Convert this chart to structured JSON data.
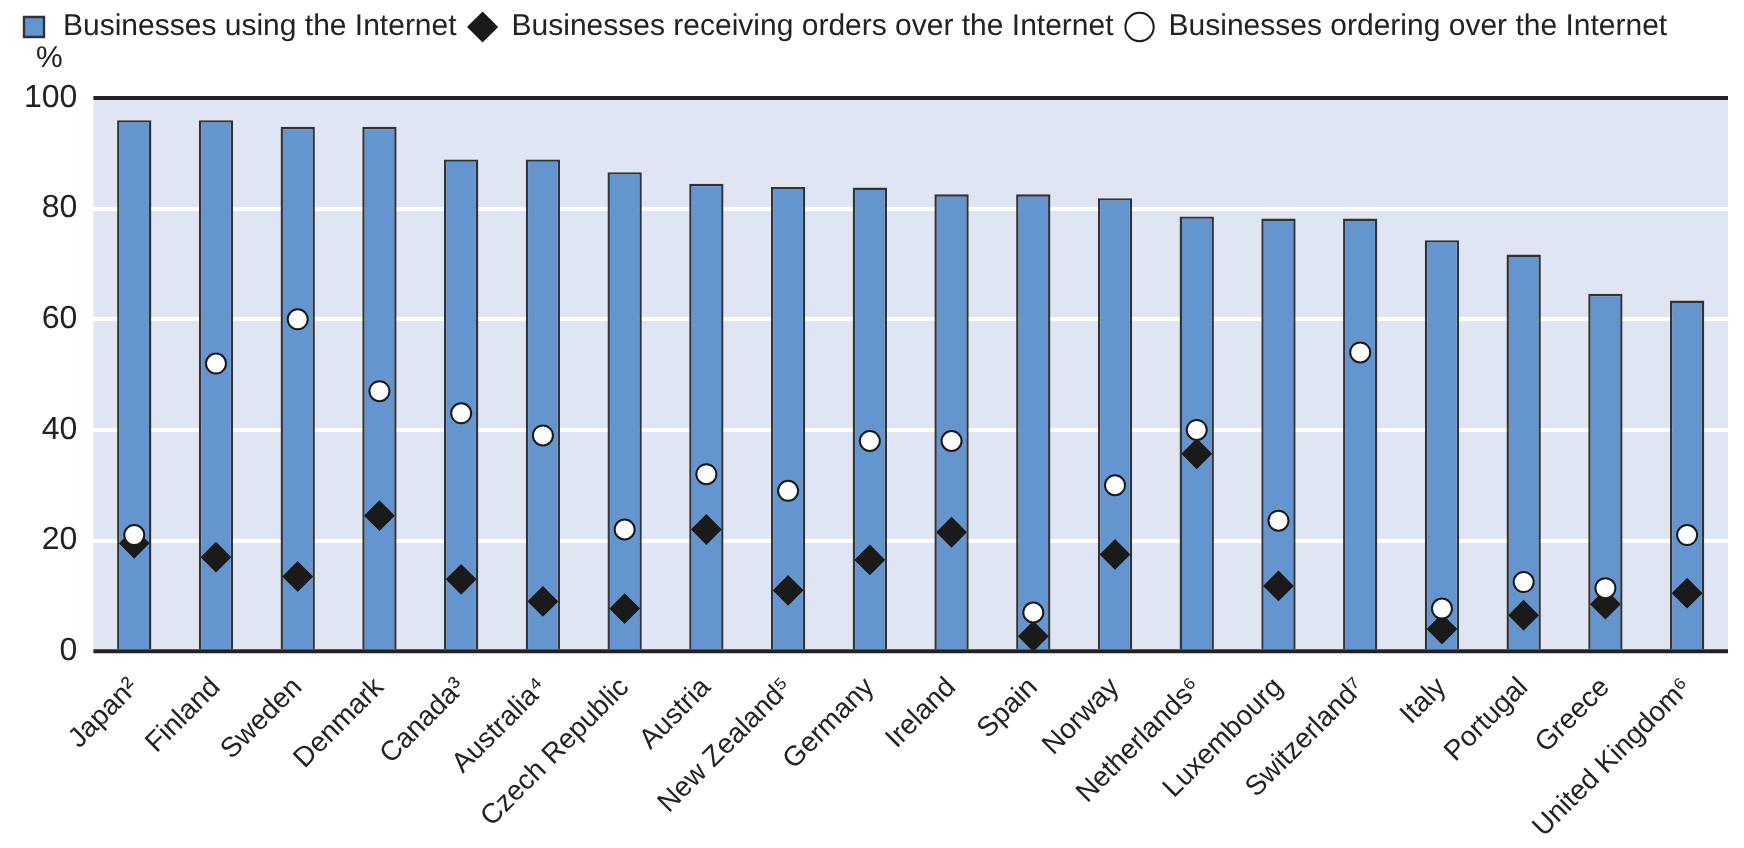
{
  "chart_data": {
    "type": "bar",
    "ylabel": "%",
    "categories": [
      "Japan²",
      "Finland",
      "Sweden",
      "Denmark",
      "Canada³",
      "Australia⁴",
      "Czech Republic",
      "Austria",
      "New Zealand⁵",
      "Germany",
      "Ireland",
      "Spain",
      "Norway",
      "Netherlands⁶",
      "Luxembourg",
      "Switzerland⁷",
      "Italy",
      "Portugal",
      "Greece",
      "United Kingdom⁶"
    ],
    "series": [
      {
        "name": "Businesses using the Internet",
        "color": "#6595cf",
        "values": [
          96,
          96,
          94.8,
          94.8,
          88.9,
          88.9,
          86.6,
          84.5,
          83.9,
          83.8,
          82.6,
          82.6,
          81.9,
          78.6,
          78.2,
          78.2,
          74.3,
          71.7,
          64.6,
          63.4
        ]
      },
      {
        "name": "Businesses receiving orders over the Internet",
        "type": "scatter",
        "marker": "diamond",
        "color": "#1a1a1a",
        "values": [
          19.5,
          17,
          13.5,
          24.5,
          13,
          9,
          7.7,
          22,
          11,
          16.5,
          21.5,
          2.7,
          17.5,
          35.7,
          11.8,
          null,
          4,
          6.5,
          8.5,
          10.5
        ]
      },
      {
        "name": "Businesses ordering over the Internet",
        "type": "scatter",
        "marker": "circle",
        "color": "#ffffff",
        "values": [
          21,
          52,
          60,
          47,
          43,
          39,
          22,
          32,
          29,
          38,
          38,
          7,
          30,
          40,
          23.6,
          54,
          7.7,
          12.5,
          11.4,
          21
        ]
      }
    ],
    "ylim": [
      0,
      100
    ],
    "yticks": [
      0,
      20,
      40,
      60,
      80,
      100
    ],
    "grid": "y",
    "legend": "top left"
  }
}
